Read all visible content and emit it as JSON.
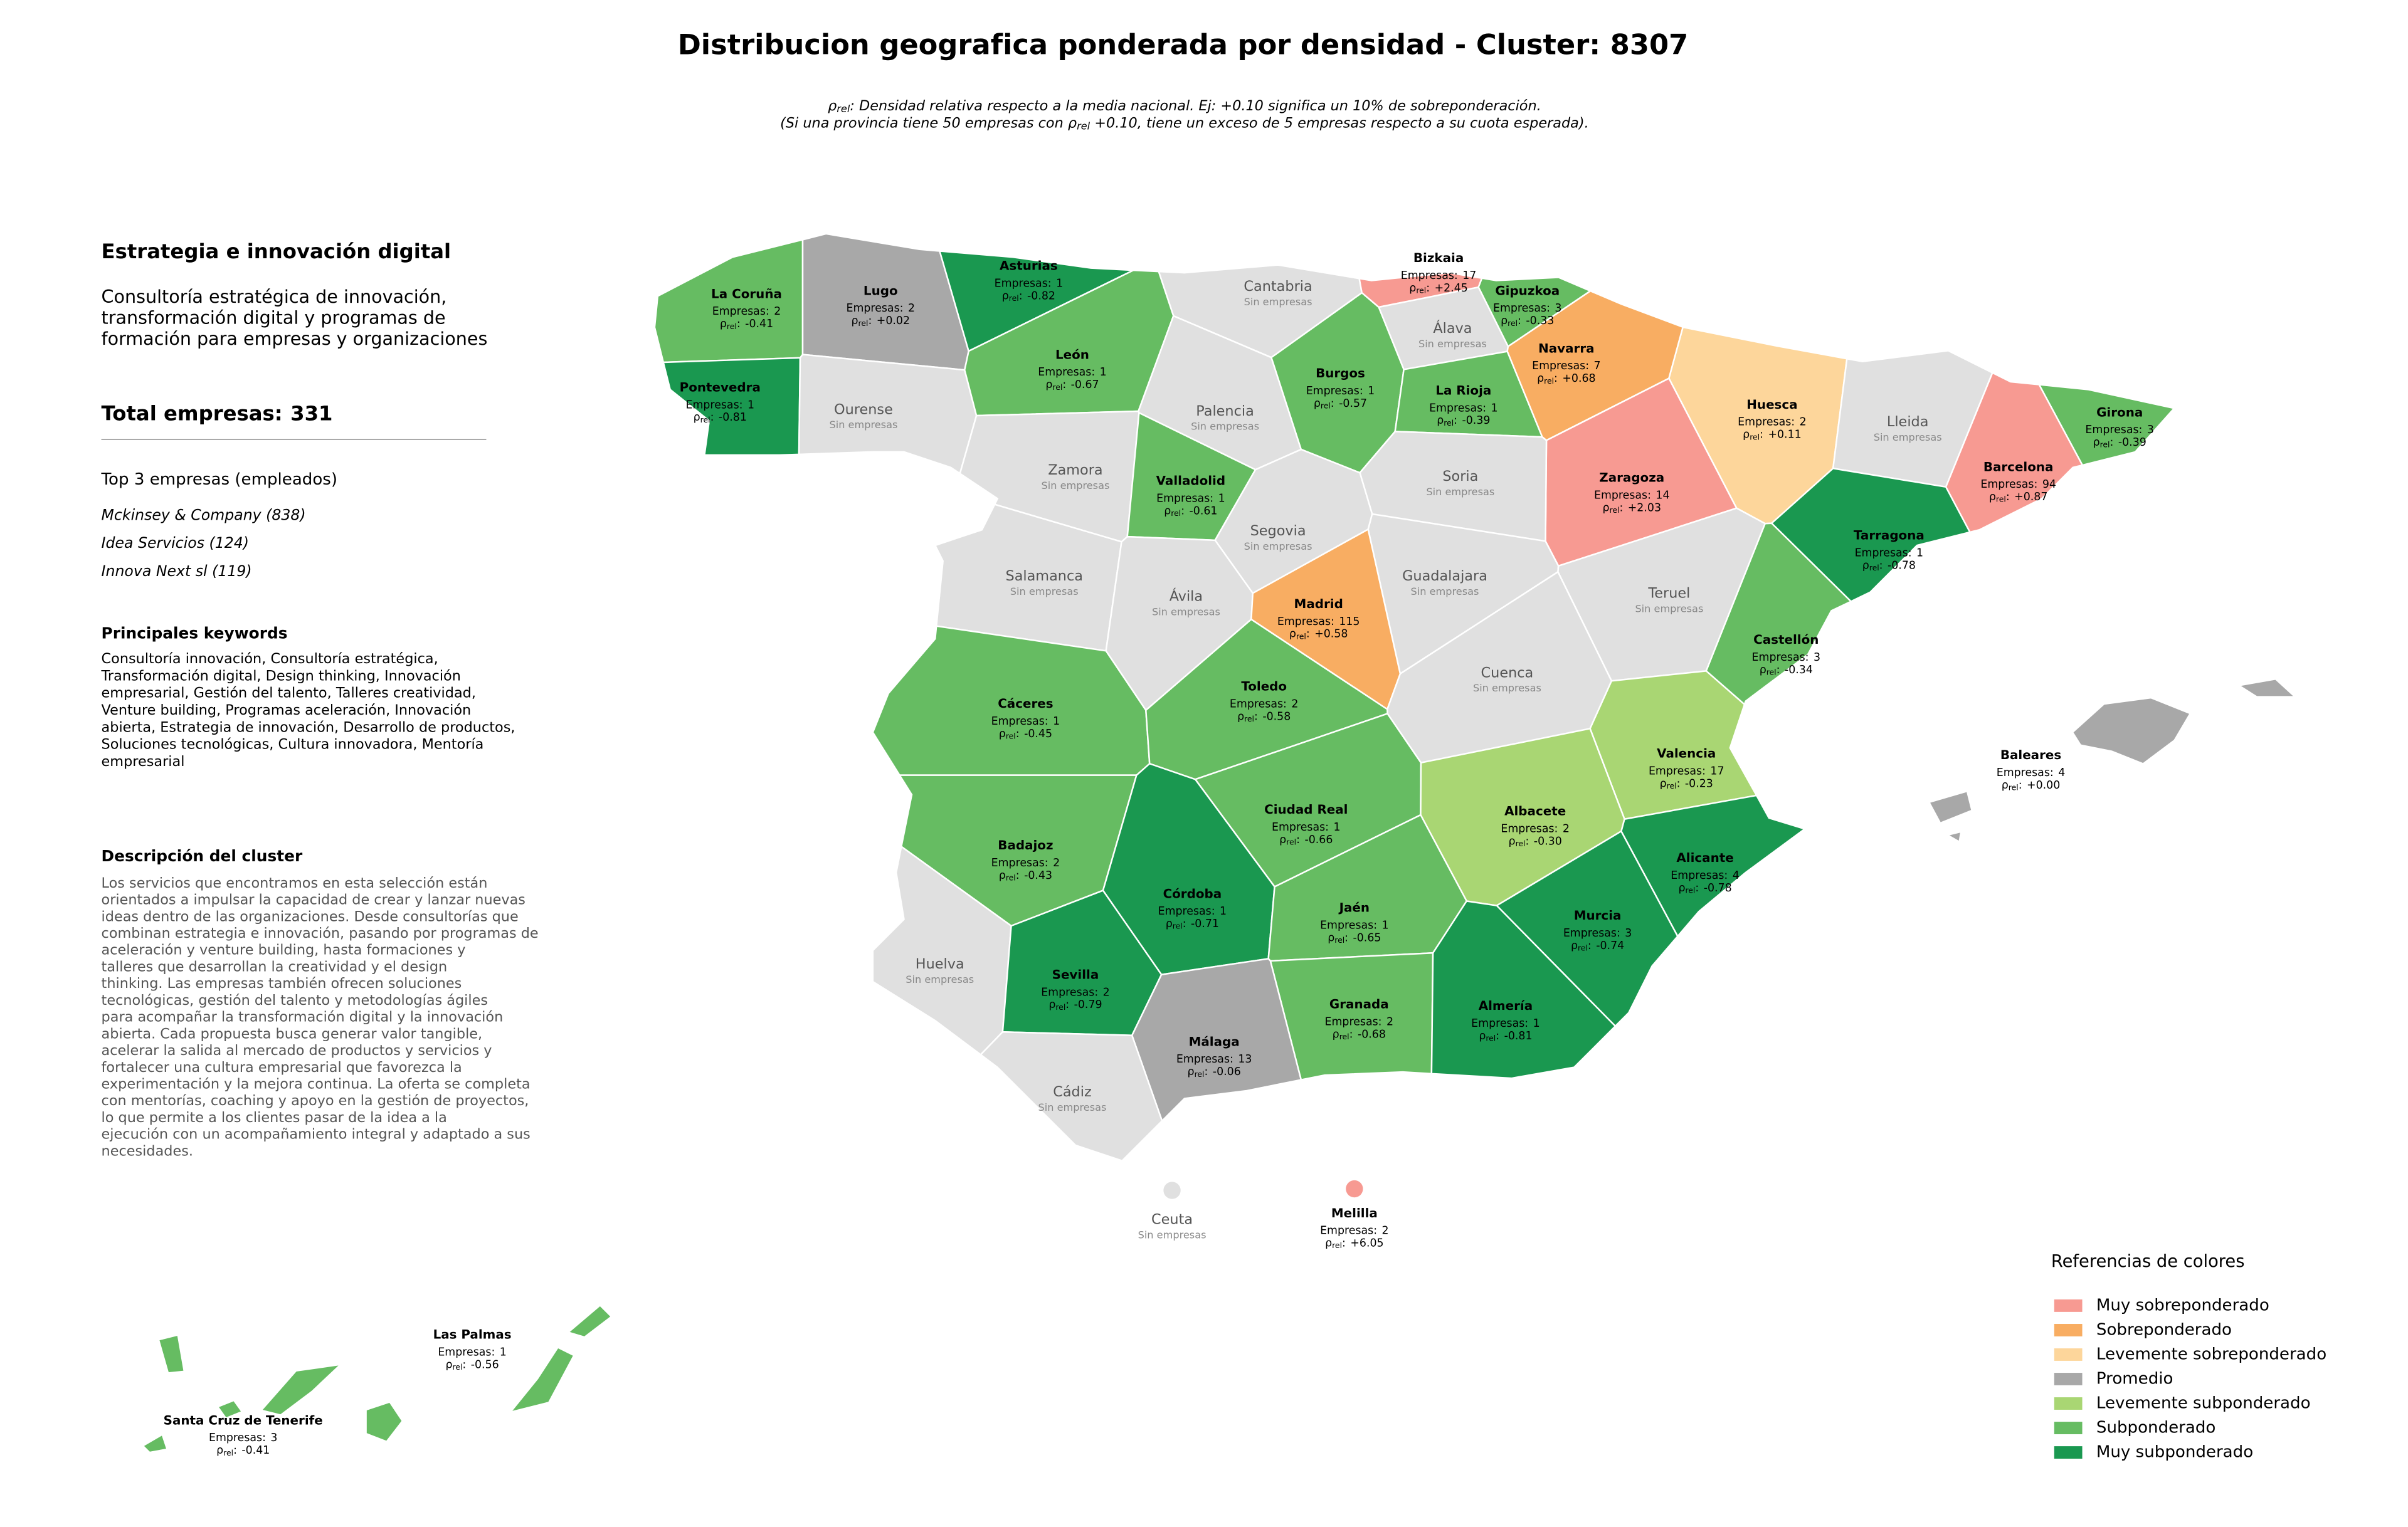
{
  "title": "Distribucion geografica ponderada por densidad - Cluster: 8307",
  "note": [
    [
      {
        "text": "ρ"
      },
      {
        "sub": "rel"
      },
      {
        "text": ": Densidad relativa respecto a la media nacional. Ej: +0.10 significa un 10% de sobreponderación."
      }
    ],
    [
      {
        "text": "(Si una provincia tiene 50 empresas con "
      },
      {
        "text": "ρ"
      },
      {
        "sub": "rel"
      },
      {
        "text": " +0.10, tiene un exceso de 5 empresas respecto a su cuota esperada)."
      }
    ]
  ],
  "panel": {
    "heading": "Estrategia e innovación digital",
    "description_lines": [
      "Consultoría estratégica de innovación,",
      "transformación digital y programas de",
      "formación para empresas y organizaciones"
    ],
    "total_label": "Total empresas:",
    "total": 331,
    "top_title": "Top 3 empresas (empleados)",
    "top": [
      "Mckinsey & Company (838)",
      "Idea Servicios (124)",
      "Innova Next sl (119)"
    ],
    "keywords_title": "Principales keywords",
    "keywords_lines": [
      "Consultoría innovación, Consultoría estratégica,",
      "Transformación digital, Design thinking, Innovación",
      "empresarial, Gestión del talento, Talleres creatividad,",
      "Venture building, Programas aceleración, Innovación",
      "abierta, Estrategia de innovación, Desarrollo de productos,",
      "Soluciones tecnológicas, Cultura innovadora, Mentoría",
      "empresarial"
    ],
    "cluster_title": "Descripción del cluster",
    "cluster_lines": [
      "Los servicios que encontramos en esta selección están",
      "orientados a impulsar la capacidad de crear y lanzar nuevas",
      "ideas dentro de las organizaciones. Desde consultorías que",
      "combinan estrategia e innovación, pasando por programas de",
      "aceleración y venture building, hasta formaciones y",
      "talleres que desarrollan la creatividad y el design",
      "thinking. Las empresas también ofrecen soluciones",
      "tecnológicas, gestión del talento y metodologías ágiles",
      "para acompañar la transformación digital y la innovación",
      "abierta. Cada propuesta busca generar valor tangible,",
      "acelerar la salida al mercado de productos y servicios y",
      "fortalecer una cultura empresarial que favorezca la",
      "experimentación y la mejora continua. La oferta se completa",
      "con mentorías, coaching y apoyo en la gestión de proyectos,",
      "lo que permite a los clientes pasar de la idea a la",
      "ejecución con un acompañamiento integral y adaptado a sus",
      "necesidades."
    ]
  },
  "empresas_label": "Empresas:",
  "rho_symbol": "ρ",
  "rho_sub": "rel",
  "rho_sep": ":",
  "no_data_label": "Sin empresas",
  "no_data_color": "#e0e0e0",
  "legend": {
    "title": "Referencias de colores",
    "items": [
      {
        "name": "Muy sobreponderado",
        "color": "#f79a92"
      },
      {
        "name": "Sobreponderado",
        "color": "#f8ad62"
      },
      {
        "name": "Levemente sobreponderado",
        "color": "#fdd69b"
      },
      {
        "name": "Promedio",
        "color": "#a8a8a8"
      },
      {
        "name": "Levemente subponderado",
        "color": "#a9d673"
      },
      {
        "name": "Subponderado",
        "color": "#66bc62"
      },
      {
        "name": "Muy subponderado",
        "color": "#1a9850"
      }
    ]
  },
  "provinces": [
    {
      "name": "La Coruña",
      "empresas": 2,
      "rho": "-0.41",
      "category": "Subponderado"
    },
    {
      "name": "Lugo",
      "empresas": 2,
      "rho": "+0.02",
      "category": "Promedio"
    },
    {
      "name": "Asturias",
      "empresas": 1,
      "rho": "-0.82",
      "category": "Muy subponderado"
    },
    {
      "name": "Cantabria"
    },
    {
      "name": "Bizkaia",
      "empresas": 17,
      "rho": "+2.45",
      "category": "Muy sobreponderado"
    },
    {
      "name": "Gipuzkoa",
      "empresas": 3,
      "rho": "-0.33",
      "category": "Subponderado"
    },
    {
      "name": "Álava"
    },
    {
      "name": "Navarra",
      "empresas": 7,
      "rho": "+0.68",
      "category": "Sobreponderado"
    },
    {
      "name": "Huesca",
      "empresas": 2,
      "rho": "+0.11",
      "category": "Levemente sobreponderado"
    },
    {
      "name": "Lleida"
    },
    {
      "name": "Girona",
      "empresas": 3,
      "rho": "-0.39",
      "category": "Subponderado"
    },
    {
      "name": "Barcelona",
      "empresas": 94,
      "rho": "+0.87",
      "category": "Muy sobreponderado"
    },
    {
      "name": "Pontevedra",
      "empresas": 1,
      "rho": "-0.81",
      "category": "Muy subponderado"
    },
    {
      "name": "Ourense"
    },
    {
      "name": "León",
      "empresas": 1,
      "rho": "-0.67",
      "category": "Subponderado"
    },
    {
      "name": "Palencia"
    },
    {
      "name": "Burgos",
      "empresas": 1,
      "rho": "-0.57",
      "category": "Subponderado"
    },
    {
      "name": "La Rioja",
      "empresas": 1,
      "rho": "-0.39",
      "category": "Subponderado"
    },
    {
      "name": "Zaragoza",
      "empresas": 14,
      "rho": "+2.03",
      "category": "Muy sobreponderado"
    },
    {
      "name": "Zamora"
    },
    {
      "name": "Valladolid",
      "empresas": 1,
      "rho": "-0.61",
      "category": "Subponderado"
    },
    {
      "name": "Soria"
    },
    {
      "name": "Tarragona",
      "empresas": 1,
      "rho": "-0.78",
      "category": "Muy subponderado"
    },
    {
      "name": "Segovia"
    },
    {
      "name": "Salamanca"
    },
    {
      "name": "Guadalajara"
    },
    {
      "name": "Ávila"
    },
    {
      "name": "Madrid",
      "empresas": 115,
      "rho": "+0.58",
      "category": "Sobreponderado"
    },
    {
      "name": "Teruel"
    },
    {
      "name": "Castellón",
      "empresas": 3,
      "rho": "-0.34",
      "category": "Subponderado"
    },
    {
      "name": "Cuenca"
    },
    {
      "name": "Cáceres",
      "empresas": 1,
      "rho": "-0.45",
      "category": "Subponderado"
    },
    {
      "name": "Toledo",
      "empresas": 2,
      "rho": "-0.58",
      "category": "Subponderado"
    },
    {
      "name": "Valencia",
      "empresas": 17,
      "rho": "-0.23",
      "category": "Levemente subponderado"
    },
    {
      "name": "Ciudad Real",
      "empresas": 1,
      "rho": "-0.66",
      "category": "Subponderado"
    },
    {
      "name": "Albacete",
      "empresas": 2,
      "rho": "-0.30",
      "category": "Levemente subponderado"
    },
    {
      "name": "Badajoz",
      "empresas": 2,
      "rho": "-0.43",
      "category": "Subponderado"
    },
    {
      "name": "Alicante",
      "empresas": 4,
      "rho": "-0.78",
      "category": "Muy subponderado"
    },
    {
      "name": "Córdoba",
      "empresas": 1,
      "rho": "-0.71",
      "category": "Muy subponderado"
    },
    {
      "name": "Jaén",
      "empresas": 1,
      "rho": "-0.65",
      "category": "Subponderado"
    },
    {
      "name": "Murcia",
      "empresas": 3,
      "rho": "-0.74",
      "category": "Muy subponderado"
    },
    {
      "name": "Huelva"
    },
    {
      "name": "Sevilla",
      "empresas": 2,
      "rho": "-0.79",
      "category": "Muy subponderado"
    },
    {
      "name": "Granada",
      "empresas": 2,
      "rho": "-0.68",
      "category": "Subponderado"
    },
    {
      "name": "Almería",
      "empresas": 1,
      "rho": "-0.81",
      "category": "Muy subponderado"
    },
    {
      "name": "Málaga",
      "empresas": 13,
      "rho": "-0.06",
      "category": "Promedio"
    },
    {
      "name": "Cádiz"
    },
    {
      "name": "Ceuta"
    },
    {
      "name": "Melilla",
      "empresas": 2,
      "rho": "+6.05",
      "category": "Muy sobreponderado"
    },
    {
      "name": "Baleares",
      "empresas": 4,
      "rho": "+0.00",
      "category": "Promedio"
    },
    {
      "name": "Las Palmas",
      "empresas": 1,
      "rho": "-0.56",
      "category": "Subponderado"
    },
    {
      "name": "Santa Cruz de Tenerife",
      "empresas": 3,
      "rho": "-0.41",
      "category": "Subponderado"
    }
  ]
}
